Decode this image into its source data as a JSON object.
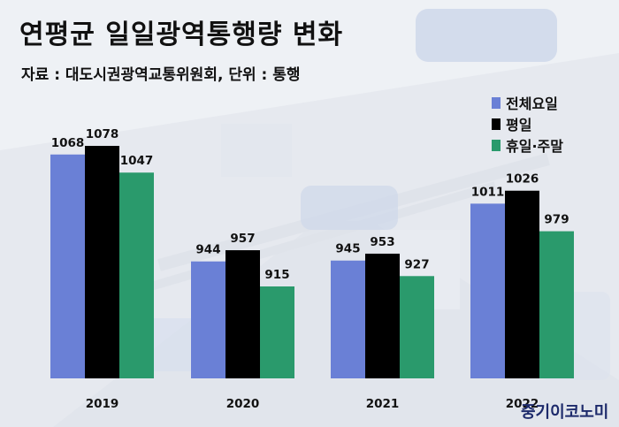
{
  "title": "연평균 일일광역통행량 변화",
  "source": "자료 : 대도시권광역교통위원회, 단위 : 통행",
  "logo": "중기이코노미",
  "colors": {
    "total": "#6a80d6",
    "weekday": "#000000",
    "holiday": "#2a9a6c"
  },
  "chart_data": {
    "type": "bar",
    "title": "연평균 일일광역통행량 변화",
    "categories": [
      "2019",
      "2020",
      "2021",
      "2022"
    ],
    "series": [
      {
        "name": "전체요일",
        "values": [
          1068,
          944,
          945,
          1011
        ]
      },
      {
        "name": "평일",
        "values": [
          1078,
          957,
          953,
          1026
        ]
      },
      {
        "name": "휴일·주말",
        "values": [
          1047,
          915,
          927,
          979
        ]
      }
    ],
    "legend_position": "top-right",
    "grid": false
  }
}
